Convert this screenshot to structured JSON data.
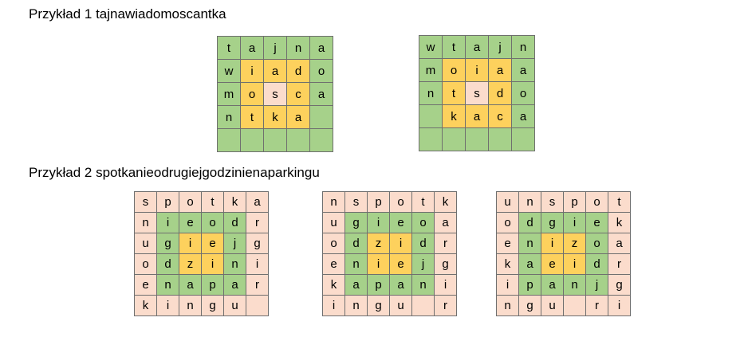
{
  "colors": {
    "green": "#a6d18a",
    "yellow": "#fdd15d",
    "pink": "#fbdccc",
    "border": "#6f6f6f"
  },
  "examples": [
    {
      "title": "Przykład 1 tajnawiadomoscantka",
      "grids": [
        {
          "rows": [
            [
              [
                "t",
                "green"
              ],
              [
                "a",
                "green"
              ],
              [
                "j",
                "green"
              ],
              [
                "n",
                "green"
              ],
              [
                "a",
                "green"
              ]
            ],
            [
              [
                "w",
                "green"
              ],
              [
                "i",
                "yellow"
              ],
              [
                "a",
                "yellow"
              ],
              [
                "d",
                "yellow"
              ],
              [
                "o",
                "green"
              ]
            ],
            [
              [
                "m",
                "green"
              ],
              [
                "o",
                "yellow"
              ],
              [
                "s",
                "pink"
              ],
              [
                "c",
                "yellow"
              ],
              [
                "a",
                "green"
              ]
            ],
            [
              [
                "n",
                "green"
              ],
              [
                "t",
                "yellow"
              ],
              [
                "k",
                "yellow"
              ],
              [
                "a",
                "yellow"
              ],
              [
                "",
                "green"
              ]
            ],
            [
              [
                "",
                "green"
              ],
              [
                "",
                "green"
              ],
              [
                "",
                "green"
              ],
              [
                "",
                "green"
              ],
              [
                "",
                "green"
              ]
            ]
          ]
        },
        {
          "rows": [
            [
              [
                "w",
                "green"
              ],
              [
                "t",
                "green"
              ],
              [
                "a",
                "green"
              ],
              [
                "j",
                "green"
              ],
              [
                "n",
                "green"
              ]
            ],
            [
              [
                "m",
                "green"
              ],
              [
                "o",
                "yellow"
              ],
              [
                "i",
                "yellow"
              ],
              [
                "a",
                "yellow"
              ],
              [
                "a",
                "green"
              ]
            ],
            [
              [
                "n",
                "green"
              ],
              [
                "t",
                "yellow"
              ],
              [
                "s",
                "pink"
              ],
              [
                "d",
                "yellow"
              ],
              [
                "o",
                "green"
              ]
            ],
            [
              [
                "",
                "green"
              ],
              [
                "k",
                "yellow"
              ],
              [
                "a",
                "yellow"
              ],
              [
                "c",
                "yellow"
              ],
              [
                "a",
                "green"
              ]
            ],
            [
              [
                "",
                "green"
              ],
              [
                "",
                "green"
              ],
              [
                "",
                "green"
              ],
              [
                "",
                "green"
              ],
              [
                "",
                "green"
              ]
            ]
          ]
        }
      ]
    },
    {
      "title": "Przykład 2 spotkanieodrugiejgodzinienaparkingu",
      "grids": [
        {
          "rows": [
            [
              [
                "s",
                "pink"
              ],
              [
                "p",
                "pink"
              ],
              [
                "o",
                "pink"
              ],
              [
                "t",
                "pink"
              ],
              [
                "k",
                "pink"
              ],
              [
                "a",
                "pink"
              ]
            ],
            [
              [
                "n",
                "pink"
              ],
              [
                "i",
                "green"
              ],
              [
                "e",
                "green"
              ],
              [
                "o",
                "green"
              ],
              [
                "d",
                "green"
              ],
              [
                "r",
                "pink"
              ]
            ],
            [
              [
                "u",
                "pink"
              ],
              [
                "g",
                "green"
              ],
              [
                "i",
                "yellow"
              ],
              [
                "e",
                "yellow"
              ],
              [
                "j",
                "green"
              ],
              [
                "g",
                "pink"
              ]
            ],
            [
              [
                "o",
                "pink"
              ],
              [
                "d",
                "green"
              ],
              [
                "z",
                "yellow"
              ],
              [
                "i",
                "yellow"
              ],
              [
                "n",
                "green"
              ],
              [
                "i",
                "pink"
              ]
            ],
            [
              [
                "e",
                "pink"
              ],
              [
                "n",
                "green"
              ],
              [
                "a",
                "green"
              ],
              [
                "p",
                "green"
              ],
              [
                "a",
                "green"
              ],
              [
                "r",
                "pink"
              ]
            ],
            [
              [
                "k",
                "pink"
              ],
              [
                "i",
                "pink"
              ],
              [
                "n",
                "pink"
              ],
              [
                "g",
                "pink"
              ],
              [
                "u",
                "pink"
              ],
              [
                "",
                "pink"
              ]
            ]
          ]
        },
        {
          "rows": [
            [
              [
                "n",
                "pink"
              ],
              [
                "s",
                "pink"
              ],
              [
                "p",
                "pink"
              ],
              [
                "o",
                "pink"
              ],
              [
                "t",
                "pink"
              ],
              [
                "k",
                "pink"
              ]
            ],
            [
              [
                "u",
                "pink"
              ],
              [
                "g",
                "green"
              ],
              [
                "i",
                "green"
              ],
              [
                "e",
                "green"
              ],
              [
                "o",
                "green"
              ],
              [
                "a",
                "pink"
              ]
            ],
            [
              [
                "o",
                "pink"
              ],
              [
                "d",
                "green"
              ],
              [
                "z",
                "yellow"
              ],
              [
                "i",
                "yellow"
              ],
              [
                "d",
                "green"
              ],
              [
                "r",
                "pink"
              ]
            ],
            [
              [
                "e",
                "pink"
              ],
              [
                "n",
                "green"
              ],
              [
                "i",
                "yellow"
              ],
              [
                "e",
                "yellow"
              ],
              [
                "j",
                "green"
              ],
              [
                "g",
                "pink"
              ]
            ],
            [
              [
                "k",
                "pink"
              ],
              [
                "a",
                "green"
              ],
              [
                "p",
                "green"
              ],
              [
                "a",
                "green"
              ],
              [
                "n",
                "green"
              ],
              [
                "i",
                "pink"
              ]
            ],
            [
              [
                "i",
                "pink"
              ],
              [
                "n",
                "pink"
              ],
              [
                "g",
                "pink"
              ],
              [
                "u",
                "pink"
              ],
              [
                "",
                "pink"
              ],
              [
                "r",
                "pink"
              ]
            ]
          ]
        },
        {
          "rows": [
            [
              [
                "u",
                "pink"
              ],
              [
                "n",
                "pink"
              ],
              [
                "s",
                "pink"
              ],
              [
                "p",
                "pink"
              ],
              [
                "o",
                "pink"
              ],
              [
                "t",
                "pink"
              ]
            ],
            [
              [
                "o",
                "pink"
              ],
              [
                "d",
                "green"
              ],
              [
                "g",
                "green"
              ],
              [
                "i",
                "green"
              ],
              [
                "e",
                "green"
              ],
              [
                "k",
                "pink"
              ]
            ],
            [
              [
                "e",
                "pink"
              ],
              [
                "n",
                "green"
              ],
              [
                "i",
                "yellow"
              ],
              [
                "z",
                "yellow"
              ],
              [
                "o",
                "green"
              ],
              [
                "a",
                "pink"
              ]
            ],
            [
              [
                "k",
                "pink"
              ],
              [
                "a",
                "green"
              ],
              [
                "e",
                "yellow"
              ],
              [
                "i",
                "yellow"
              ],
              [
                "d",
                "green"
              ],
              [
                "r",
                "pink"
              ]
            ],
            [
              [
                "i",
                "pink"
              ],
              [
                "p",
                "green"
              ],
              [
                "a",
                "green"
              ],
              [
                "n",
                "green"
              ],
              [
                "j",
                "green"
              ],
              [
                "g",
                "pink"
              ]
            ],
            [
              [
                "n",
                "pink"
              ],
              [
                "g",
                "pink"
              ],
              [
                "u",
                "pink"
              ],
              [
                "",
                "pink"
              ],
              [
                "r",
                "pink"
              ],
              [
                "i",
                "pink"
              ]
            ]
          ]
        }
      ]
    }
  ]
}
